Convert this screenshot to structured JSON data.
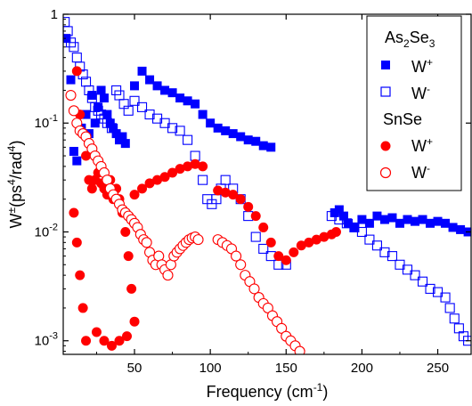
{
  "chart_data": {
    "type": "scatter",
    "xlabel": "Frequency (cm",
    "xlabel_sup": "-1",
    "xlabel_close": ")",
    "ylabel": "W",
    "ylabel_sup": "±",
    "ylabel_units": "(ps",
    "ylabel_units_sup": "4",
    "ylabel_units_mid": "/rad",
    "ylabel_units_sup2": "4",
    "ylabel_units_close": ")",
    "y_scale": "log",
    "xlim": [
      3,
      272
    ],
    "ylim": [
      0.00075,
      1.0
    ],
    "x_ticks": [
      50,
      100,
      150,
      200,
      250
    ],
    "x_tick_labels": [
      "50",
      "100",
      "150",
      "200",
      "250"
    ],
    "y_ticks": [
      0.001,
      0.01,
      0.1,
      1
    ],
    "y_tick_labels": [
      {
        "base": "10",
        "exp": "-3"
      },
      {
        "base": "10",
        "exp": "-2"
      },
      {
        "base": "10",
        "exp": "-1"
      },
      {
        "base": "1",
        "exp": ""
      }
    ],
    "legend": {
      "position": "top-right",
      "groups": [
        {
          "title": "As",
          "title_sub1": "2",
          "title_mid": "Se",
          "title_sub2": "3",
          "entries": [
            {
              "label": "W",
              "sup": "+",
              "marker": "square-filled",
              "color": "#0000ff"
            },
            {
              "label": "W",
              "sup": "-",
              "marker": "square-open",
              "color": "#0000ff"
            }
          ]
        },
        {
          "title": "SnSe",
          "entries": [
            {
              "label": "W",
              "sup": "+",
              "marker": "circle-filled",
              "color": "#ff0000"
            },
            {
              "label": "W",
              "sup": "-",
              "marker": "circle-open",
              "color": "#ff0000"
            }
          ]
        }
      ]
    },
    "series": [
      {
        "name": "As2Se3 W+",
        "marker": "square-filled",
        "color": "#0000ff",
        "points": [
          [
            5,
            0.6
          ],
          [
            8,
            0.25
          ],
          [
            10,
            0.055
          ],
          [
            12,
            0.045
          ],
          [
            15,
            0.09
          ],
          [
            18,
            0.12
          ],
          [
            20,
            0.08
          ],
          [
            22,
            0.18
          ],
          [
            24,
            0.1
          ],
          [
            26,
            0.14
          ],
          [
            28,
            0.2
          ],
          [
            30,
            0.17
          ],
          [
            32,
            0.12
          ],
          [
            34,
            0.1
          ],
          [
            36,
            0.09
          ],
          [
            38,
            0.08
          ],
          [
            40,
            0.07
          ],
          [
            42,
            0.075
          ],
          [
            44,
            0.065
          ],
          [
            50,
            0.22
          ],
          [
            55,
            0.3
          ],
          [
            60,
            0.25
          ],
          [
            65,
            0.22
          ],
          [
            70,
            0.2
          ],
          [
            75,
            0.19
          ],
          [
            80,
            0.17
          ],
          [
            85,
            0.16
          ],
          [
            90,
            0.15
          ],
          [
            95,
            0.12
          ],
          [
            100,
            0.1
          ],
          [
            105,
            0.09
          ],
          [
            110,
            0.085
          ],
          [
            115,
            0.08
          ],
          [
            120,
            0.075
          ],
          [
            125,
            0.07
          ],
          [
            130,
            0.068
          ],
          [
            135,
            0.062
          ],
          [
            140,
            0.06
          ],
          [
            182,
            0.015
          ],
          [
            185,
            0.016
          ],
          [
            188,
            0.014
          ],
          [
            191,
            0.012
          ],
          [
            195,
            0.011
          ],
          [
            200,
            0.013
          ],
          [
            205,
            0.012
          ],
          [
            210,
            0.014
          ],
          [
            215,
            0.013
          ],
          [
            220,
            0.0135
          ],
          [
            225,
            0.012
          ],
          [
            230,
            0.013
          ],
          [
            235,
            0.0125
          ],
          [
            240,
            0.013
          ],
          [
            245,
            0.012
          ],
          [
            250,
            0.0125
          ],
          [
            255,
            0.012
          ],
          [
            260,
            0.011
          ],
          [
            265,
            0.0105
          ],
          [
            270,
            0.01
          ]
        ]
      },
      {
        "name": "As2Se3 W-",
        "marker": "square-open",
        "color": "#0000ff",
        "points": [
          [
            4,
            0.85
          ],
          [
            6,
            0.7
          ],
          [
            8,
            0.55
          ],
          [
            10,
            0.5
          ],
          [
            12,
            0.4
          ],
          [
            14,
            0.33
          ],
          [
            16,
            0.28
          ],
          [
            18,
            0.24
          ],
          [
            20,
            0.2
          ],
          [
            22,
            0.17
          ],
          [
            24,
            0.14
          ],
          [
            26,
            0.13
          ],
          [
            28,
            0.12
          ],
          [
            30,
            0.11
          ],
          [
            32,
            0.1
          ],
          [
            35,
            0.09
          ],
          [
            38,
            0.2
          ],
          [
            40,
            0.18
          ],
          [
            43,
            0.15
          ],
          [
            46,
            0.13
          ],
          [
            50,
            0.16
          ],
          [
            55,
            0.14
          ],
          [
            60,
            0.12
          ],
          [
            65,
            0.11
          ],
          [
            70,
            0.1
          ],
          [
            75,
            0.09
          ],
          [
            80,
            0.085
          ],
          [
            85,
            0.07
          ],
          [
            90,
            0.05
          ],
          [
            95,
            0.03
          ],
          [
            98,
            0.02
          ],
          [
            101,
            0.018
          ],
          [
            104,
            0.02
          ],
          [
            107,
            0.025
          ],
          [
            110,
            0.03
          ],
          [
            115,
            0.025
          ],
          [
            120,
            0.02
          ],
          [
            125,
            0.014
          ],
          [
            130,
            0.009
          ],
          [
            135,
            0.007
          ],
          [
            140,
            0.006
          ],
          [
            145,
            0.005
          ],
          [
            150,
            0.005
          ],
          [
            180,
            0.014
          ],
          [
            185,
            0.013
          ],
          [
            190,
            0.012
          ],
          [
            195,
            0.011
          ],
          [
            200,
            0.01
          ],
          [
            205,
            0.0085
          ],
          [
            210,
            0.0075
          ],
          [
            215,
            0.0065
          ],
          [
            220,
            0.006
          ],
          [
            225,
            0.005
          ],
          [
            230,
            0.0045
          ],
          [
            235,
            0.004
          ],
          [
            240,
            0.0035
          ],
          [
            245,
            0.003
          ],
          [
            250,
            0.0028
          ],
          [
            255,
            0.0025
          ],
          [
            258,
            0.002
          ],
          [
            261,
            0.0016
          ],
          [
            264,
            0.0013
          ],
          [
            267,
            0.0011
          ],
          [
            270,
            0.001
          ]
        ]
      },
      {
        "name": "SnSe W+",
        "marker": "circle-filled",
        "color": "#ff0000",
        "points": [
          [
            12,
            0.3
          ],
          [
            14,
            0.12
          ],
          [
            16,
            0.08
          ],
          [
            18,
            0.05
          ],
          [
            20,
            0.03
          ],
          [
            22,
            0.025
          ],
          [
            24,
            0.03
          ],
          [
            26,
            0.035
          ],
          [
            28,
            0.028
          ],
          [
            30,
            0.025
          ],
          [
            32,
            0.022
          ],
          [
            34,
            0.03
          ],
          [
            36,
            0.02
          ],
          [
            38,
            0.025
          ],
          [
            40,
            0.02
          ],
          [
            42,
            0.015
          ],
          [
            44,
            0.01
          ],
          [
            46,
            0.006
          ],
          [
            48,
            0.003
          ],
          [
            50,
            0.0015
          ],
          [
            10,
            0.015
          ],
          [
            12,
            0.008
          ],
          [
            14,
            0.004
          ],
          [
            16,
            0.002
          ],
          [
            18,
            0.001
          ],
          [
            25,
            0.0012
          ],
          [
            30,
            0.001
          ],
          [
            35,
            0.0009
          ],
          [
            40,
            0.001
          ],
          [
            45,
            0.0011
          ],
          [
            50,
            0.022
          ],
          [
            55,
            0.025
          ],
          [
            60,
            0.028
          ],
          [
            65,
            0.03
          ],
          [
            70,
            0.032
          ],
          [
            75,
            0.035
          ],
          [
            80,
            0.038
          ],
          [
            85,
            0.04
          ],
          [
            90,
            0.042
          ],
          [
            95,
            0.04
          ],
          [
            105,
            0.024
          ],
          [
            110,
            0.023
          ],
          [
            115,
            0.022
          ],
          [
            120,
            0.02
          ],
          [
            125,
            0.017
          ],
          [
            130,
            0.014
          ],
          [
            135,
            0.011
          ],
          [
            140,
            0.008
          ],
          [
            145,
            0.006
          ],
          [
            150,
            0.0055
          ],
          [
            155,
            0.0065
          ],
          [
            160,
            0.0075
          ],
          [
            165,
            0.008
          ],
          [
            170,
            0.0085
          ],
          [
            175,
            0.009
          ],
          [
            180,
            0.0095
          ],
          [
            183,
            0.01
          ]
        ]
      },
      {
        "name": "SnSe W-",
        "marker": "circle-open",
        "color": "#ff0000",
        "points": [
          [
            8,
            0.18
          ],
          [
            10,
            0.13
          ],
          [
            12,
            0.1
          ],
          [
            14,
            0.085
          ],
          [
            16,
            0.08
          ],
          [
            18,
            0.075
          ],
          [
            20,
            0.065
          ],
          [
            22,
            0.058
          ],
          [
            24,
            0.05
          ],
          [
            26,
            0.045
          ],
          [
            28,
            0.04
          ],
          [
            30,
            0.035
          ],
          [
            32,
            0.03
          ],
          [
            34,
            0.025
          ],
          [
            36,
            0.022
          ],
          [
            38,
            0.02
          ],
          [
            40,
            0.018
          ],
          [
            42,
            0.016
          ],
          [
            44,
            0.015
          ],
          [
            46,
            0.014
          ],
          [
            48,
            0.013
          ],
          [
            50,
            0.012
          ],
          [
            52,
            0.011
          ],
          [
            54,
            0.0095
          ],
          [
            56,
            0.0085
          ],
          [
            58,
            0.008
          ],
          [
            60,
            0.0065
          ],
          [
            62,
            0.0055
          ],
          [
            64,
            0.005
          ],
          [
            66,
            0.006
          ],
          [
            68,
            0.005
          ],
          [
            70,
            0.0045
          ],
          [
            72,
            0.004
          ],
          [
            74,
            0.005
          ],
          [
            76,
            0.006
          ],
          [
            78,
            0.0065
          ],
          [
            80,
            0.007
          ],
          [
            82,
            0.0075
          ],
          [
            84,
            0.008
          ],
          [
            86,
            0.0085
          ],
          [
            88,
            0.0088
          ],
          [
            90,
            0.009
          ],
          [
            92,
            0.0085
          ],
          [
            105,
            0.0085
          ],
          [
            108,
            0.008
          ],
          [
            111,
            0.0075
          ],
          [
            114,
            0.007
          ],
          [
            117,
            0.006
          ],
          [
            120,
            0.005
          ],
          [
            123,
            0.004
          ],
          [
            126,
            0.0035
          ],
          [
            129,
            0.003
          ],
          [
            132,
            0.0025
          ],
          [
            135,
            0.0022
          ],
          [
            138,
            0.002
          ],
          [
            141,
            0.0017
          ],
          [
            144,
            0.0015
          ],
          [
            147,
            0.0013
          ],
          [
            150,
            0.0011
          ],
          [
            153,
            0.001
          ],
          [
            156,
            0.0009
          ],
          [
            159,
            0.0008
          ]
        ]
      }
    ]
  }
}
